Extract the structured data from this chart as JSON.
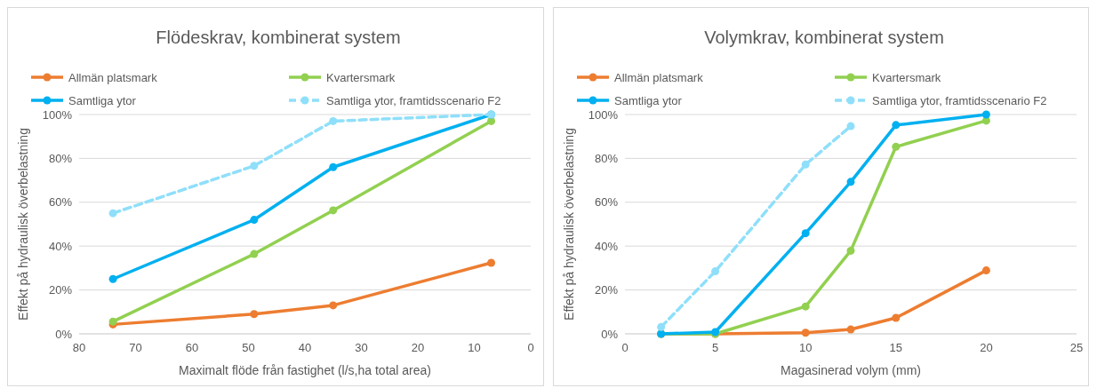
{
  "chart_data": [
    {
      "type": "line",
      "title": "Flödeskrav, kombinerat system",
      "xlabel": "Maximalt flöde från fastighet (l/s,ha total area)",
      "ylabel": "Effekt på hydraulisk överbelastning",
      "x": [
        74,
        49,
        35,
        7
      ],
      "xlim": [
        80,
        0
      ],
      "xticks": [
        80,
        70,
        60,
        50,
        40,
        30,
        20,
        10,
        0
      ],
      "ylim": [
        0,
        100
      ],
      "yticks": [
        {
          "value": 0,
          "label": "0%"
        },
        {
          "value": 20,
          "label": "20%"
        },
        {
          "value": 40,
          "label": "40%"
        },
        {
          "value": 60,
          "label": "60%"
        },
        {
          "value": 80,
          "label": "80%"
        },
        {
          "value": 100,
          "label": "100%"
        }
      ],
      "grid": "y",
      "legend": "top",
      "marker": "circle",
      "series": [
        {
          "name": "Allmän platsmark",
          "color": "#ed7d31",
          "values": [
            4.3,
            9,
            13,
            32.4
          ]
        },
        {
          "name": "Kvartersmark",
          "color": "#92d050",
          "values": [
            5.6,
            36.4,
            56.3,
            97
          ]
        },
        {
          "name": "Samtliga ytor",
          "color": "#00b0f0",
          "values": [
            25,
            52,
            76,
            100
          ]
        },
        {
          "name": "Samtliga ytor, framtidsscenario F2",
          "color": "#8fdffa",
          "line_style": "dashed",
          "values": [
            55,
            76.6,
            97,
            100
          ]
        }
      ]
    },
    {
      "type": "line",
      "title": "Volymkrav, kombinerat system",
      "xlabel": "Magasinerad volym (mm)",
      "ylabel": "Effekt på hydraulisk överbelastning",
      "xlim": [
        0,
        25
      ],
      "xticks": [
        0,
        5,
        10,
        15,
        20,
        25
      ],
      "ylim": [
        0,
        100
      ],
      "yticks": [
        {
          "value": 0,
          "label": "0%"
        },
        {
          "value": 20,
          "label": "20%"
        },
        {
          "value": 40,
          "label": "40%"
        },
        {
          "value": 60,
          "label": "60%"
        },
        {
          "value": 80,
          "label": "80%"
        },
        {
          "value": 100,
          "label": "100%"
        }
      ],
      "grid": "y",
      "legend": "top",
      "marker": "circle",
      "series": [
        {
          "name": "Allmän platsmark",
          "color": "#ed7d31",
          "x": [
            2,
            5,
            10,
            12.5,
            15,
            20
          ],
          "values": [
            0,
            0,
            0.5,
            2,
            7.3,
            28.9
          ]
        },
        {
          "name": "Kvartersmark",
          "color": "#92d050",
          "x": [
            2,
            5,
            10,
            12.5,
            15,
            20
          ],
          "values": [
            0,
            0,
            12.5,
            37.9,
            85.3,
            97.2
          ]
        },
        {
          "name": "Samtliga ytor",
          "color": "#00b0f0",
          "x": [
            2,
            5,
            10,
            12.5,
            15,
            20
          ],
          "values": [
            0,
            0.8,
            45.9,
            69.3,
            95.2,
            100
          ]
        },
        {
          "name": "Samtliga ytor, framtidsscenario F2",
          "color": "#8fdffa",
          "line_style": "dashed",
          "x": [
            2,
            5,
            10,
            12.5
          ],
          "values": [
            3.1,
            28.5,
            77.2,
            94.7
          ]
        }
      ]
    }
  ]
}
